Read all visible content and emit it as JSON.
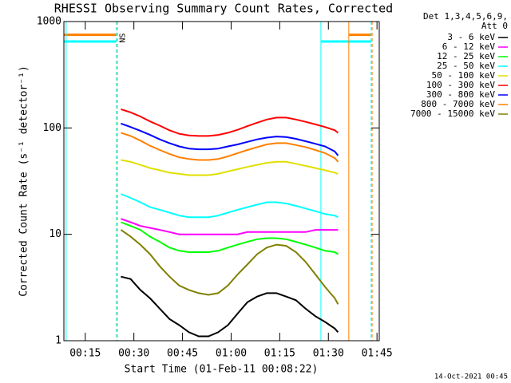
{
  "chart_data": {
    "type": "line",
    "title": "RHESSI Observing Summary Count Rates, Corrected",
    "x_label": "Start Time (01-Feb-11 00:08:22)",
    "y_label": "Corrected Count Rate (s⁻¹ detector⁻¹)",
    "legend_header": [
      "Det 1,3,4,5,6,9,",
      "Att 0"
    ],
    "footer": "14-Oct-2021 00:45",
    "log_y": true,
    "xlim": [
      8.4,
      105.7
    ],
    "ylim": [
      1,
      1000
    ],
    "xticks": [
      {
        "value": 15,
        "label": "00:15"
      },
      {
        "value": 30,
        "label": "00:30"
      },
      {
        "value": 45,
        "label": "00:45"
      },
      {
        "value": 60,
        "label": "01:00"
      },
      {
        "value": 75,
        "label": "01:15"
      },
      {
        "value": 90,
        "label": "01:30"
      },
      {
        "value": 105,
        "label": "01:45"
      }
    ],
    "yticks": [
      1,
      10,
      100,
      1000
    ],
    "x": [
      26,
      29,
      32,
      35,
      38,
      41,
      44,
      47,
      50,
      53,
      56,
      59,
      62,
      65,
      68,
      71,
      74,
      77,
      80,
      83,
      86,
      89,
      92,
      93
    ],
    "series": [
      {
        "name": "3 - 6 keV",
        "color": "#000000",
        "values": [
          4,
          3.8,
          3,
          2.5,
          2,
          1.6,
          1.4,
          1.2,
          1.1,
          1.1,
          1.2,
          1.4,
          1.8,
          2.3,
          2.6,
          2.8,
          2.8,
          2.6,
          2.4,
          2,
          1.7,
          1.5,
          1.3,
          1.2
        ]
      },
      {
        "name": "6 - 12 keV",
        "color": "#ff00ff",
        "values": [
          14,
          13,
          12,
          11.5,
          11,
          10.5,
          10,
          10,
          10,
          10,
          10,
          10,
          10,
          10.5,
          10.5,
          10.5,
          10.5,
          10.5,
          10.5,
          10.5,
          11,
          11,
          11,
          11
        ]
      },
      {
        "name": "12 - 25 keV",
        "color": "#00ff00",
        "values": [
          13,
          12,
          11,
          9.5,
          8.5,
          7.5,
          7,
          6.8,
          6.8,
          6.8,
          7,
          7.5,
          8,
          8.5,
          9,
          9.2,
          9.2,
          9,
          8.5,
          8,
          7.5,
          7,
          6.8,
          6.5
        ]
      },
      {
        "name": "25 - 50 keV",
        "color": "#00ffff",
        "values": [
          24,
          22,
          20,
          18,
          17,
          16,
          15,
          14.5,
          14.5,
          14.5,
          15,
          16,
          17,
          18,
          19,
          20,
          20,
          19.5,
          18.5,
          17.5,
          16.5,
          15.5,
          15,
          14.5
        ]
      },
      {
        "name": "50 - 100 keV",
        "color": "#e0e000",
        "values": [
          50,
          48,
          45,
          42,
          40,
          38,
          37,
          36,
          36,
          36,
          37,
          39,
          41,
          43,
          45,
          47,
          48,
          48,
          46,
          44,
          42,
          40,
          38,
          37
        ]
      },
      {
        "name": "100 - 300 keV",
        "color": "#ff0000",
        "values": [
          150,
          140,
          128,
          115,
          105,
          95,
          88,
          85,
          84,
          84,
          86,
          90,
          96,
          104,
          112,
          120,
          125,
          125,
          120,
          114,
          108,
          102,
          95,
          90
        ]
      },
      {
        "name": "300 - 800 keV",
        "color": "#0000ff",
        "values": [
          110,
          102,
          94,
          86,
          78,
          72,
          67,
          64,
          63,
          63,
          64,
          67,
          70,
          74,
          78,
          81,
          83,
          82,
          79,
          75,
          71,
          67,
          60,
          55
        ]
      },
      {
        "name": "800 - 7000 keV",
        "color": "#ff8000",
        "values": [
          90,
          84,
          76,
          68,
          62,
          57,
          53,
          51,
          50,
          50,
          51,
          54,
          58,
          62,
          66,
          70,
          72,
          72,
          69,
          66,
          62,
          58,
          52,
          48
        ]
      },
      {
        "name": "7000 - 15000 keV",
        "color": "#808000",
        "values": [
          11,
          9.5,
          8,
          6.5,
          5,
          4,
          3.3,
          3,
          2.8,
          2.7,
          2.8,
          3.3,
          4.2,
          5.2,
          6.5,
          7.5,
          8,
          7.8,
          6.8,
          5.5,
          4.2,
          3.2,
          2.5,
          2.2
        ]
      }
    ],
    "event_lines": [
      {
        "time": 9.1,
        "color": "#00ffff",
        "dashed": false
      },
      {
        "time": 24.6,
        "color": "#00ffff",
        "dashed": true
      },
      {
        "time": 24.9,
        "color": "#ff8000",
        "dashed": true
      },
      {
        "time": 87.7,
        "color": "#00ffff",
        "dashed": false
      },
      {
        "time": 96.3,
        "color": "#ff8000",
        "dashed": false
      },
      {
        "time": 103.2,
        "color": "#00ffff",
        "dashed": true
      },
      {
        "time": 103.5,
        "color": "#ff8000",
        "dashed": true
      }
    ],
    "flag_bars": [
      {
        "color": "#ff8000",
        "value": 750,
        "from": 8.4,
        "to": 24.6
      },
      {
        "color": "#00ffff",
        "value": 650,
        "from": 8.4,
        "to": 24.6
      },
      {
        "color": "#00ffff",
        "value": 650,
        "from": 87.7,
        "to": 103.2
      },
      {
        "color": "#ff8000",
        "value": 750,
        "from": 96.3,
        "to": 103.2
      }
    ],
    "annotation": {
      "text": "SN",
      "time": 26.3,
      "value": 700,
      "color": "#ff8000"
    }
  }
}
